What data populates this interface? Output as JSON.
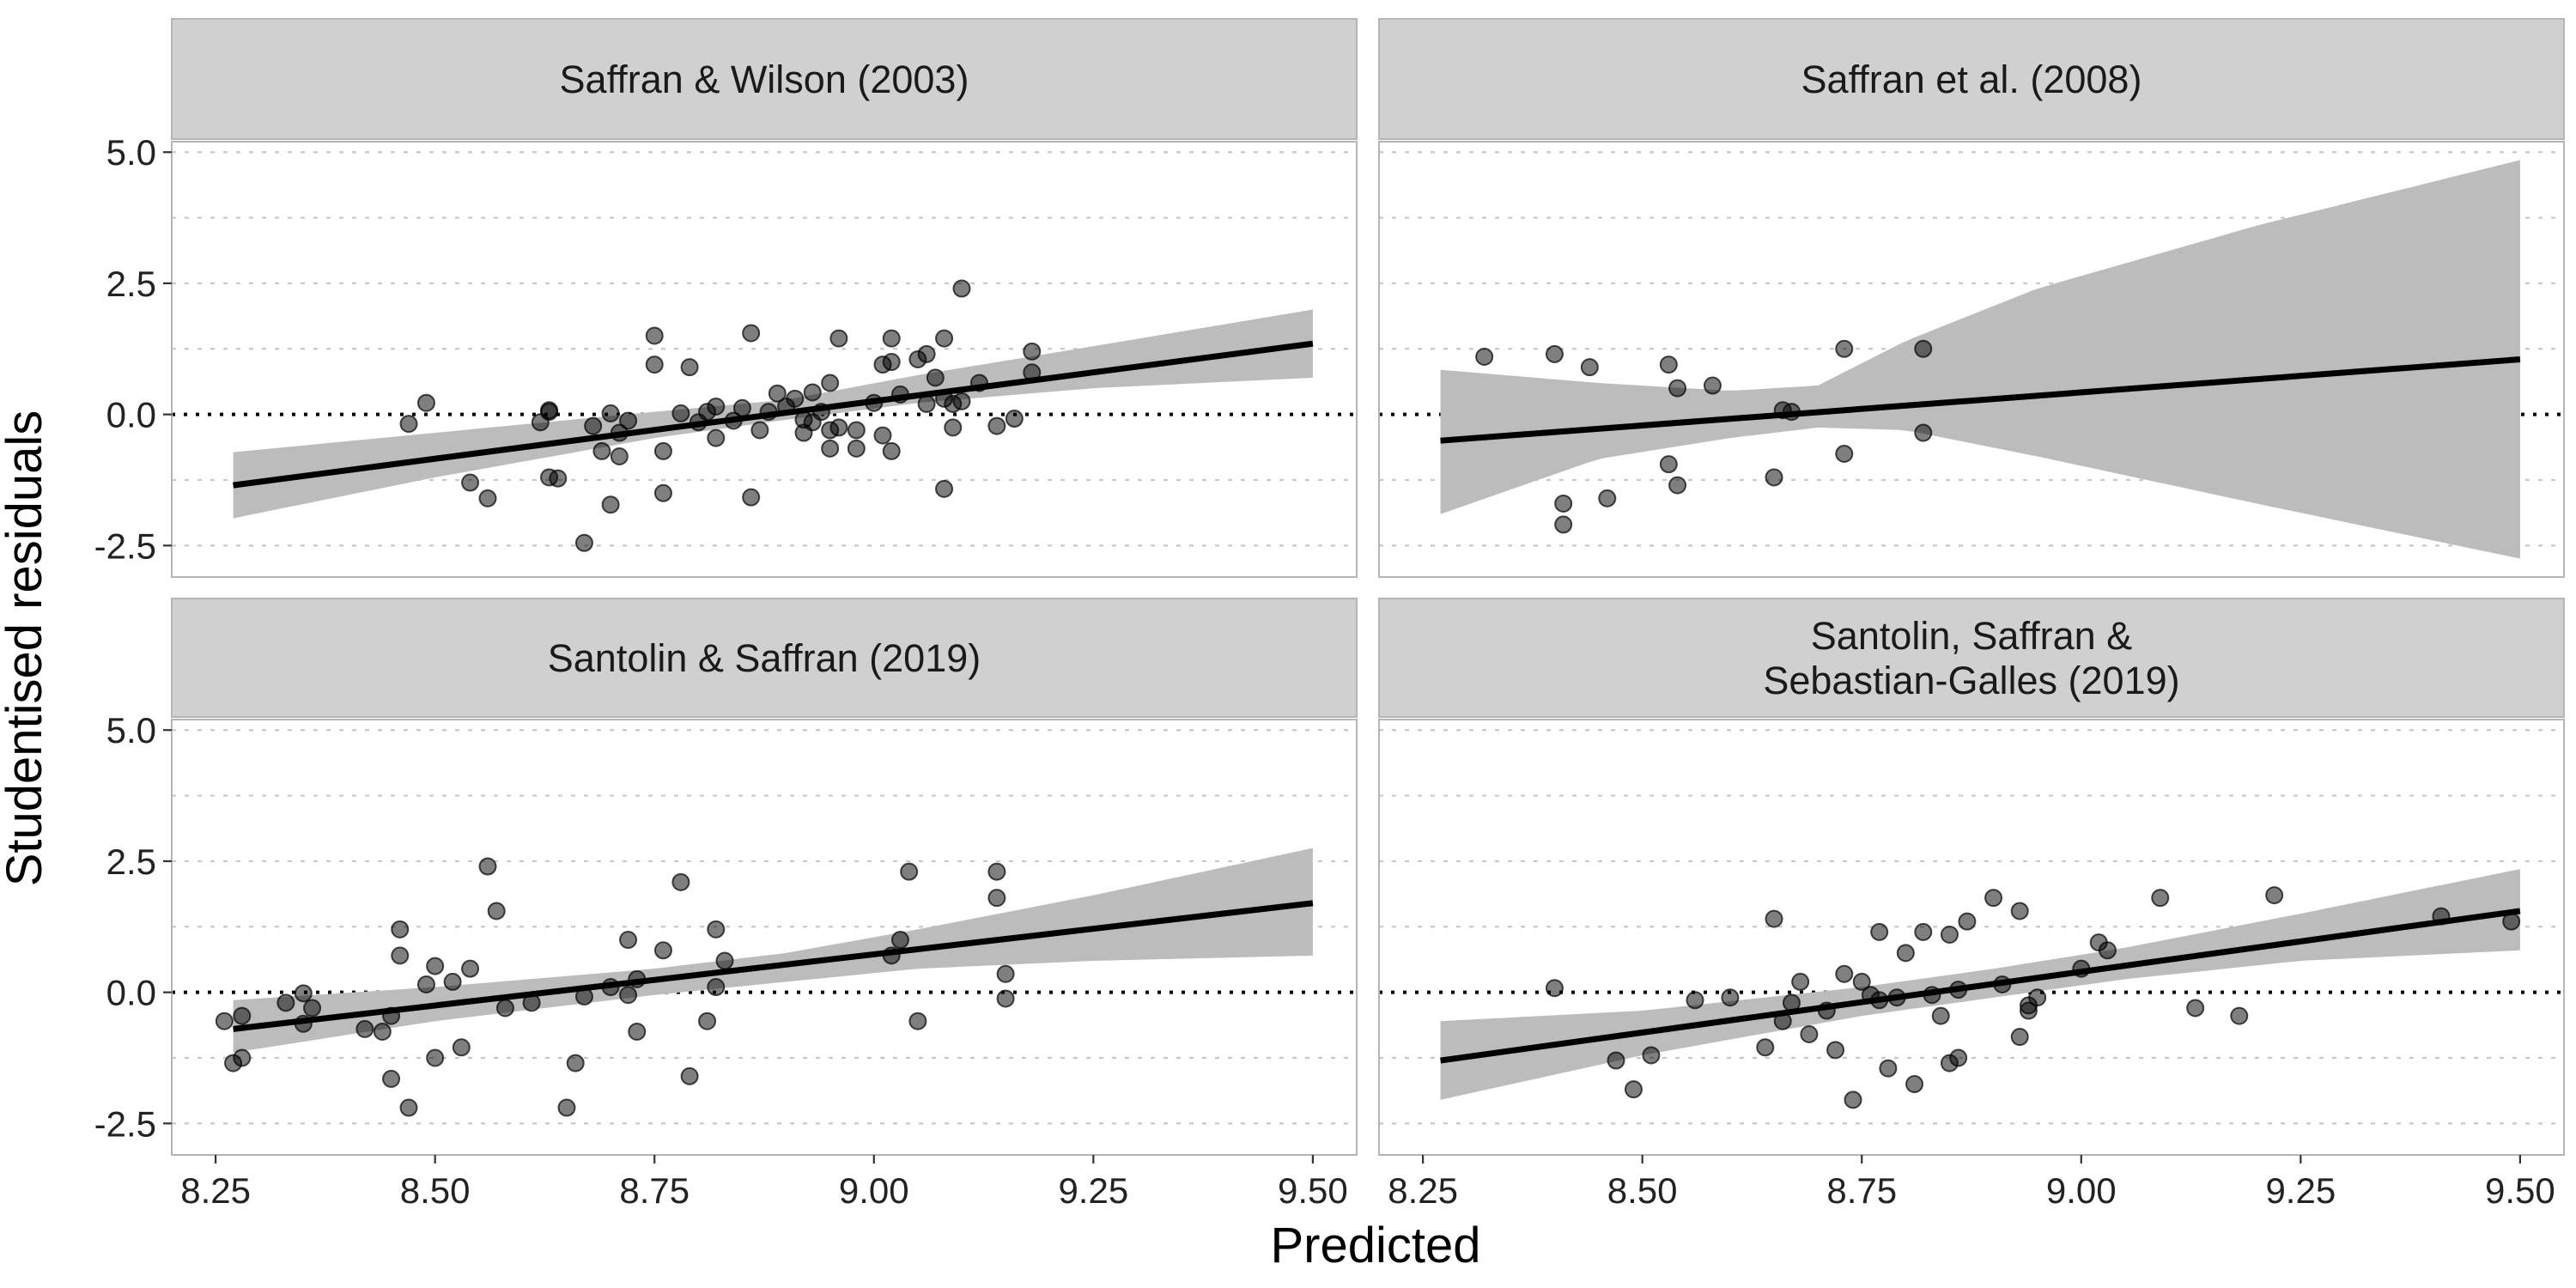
{
  "chart_data": {
    "type": "scatter",
    "xlabel": "Predicted",
    "ylabel": "Studentised residuals",
    "xlim": [
      8.2,
      9.55
    ],
    "ylim": [
      -3.1,
      5.2
    ],
    "x_ticks": [
      "8.25",
      "8.50",
      "8.75",
      "9.00",
      "9.25",
      "9.50"
    ],
    "y_ticks": [
      "-2.5",
      "0.0",
      "2.5",
      "5.0"
    ],
    "x_tick_values": [
      8.25,
      8.5,
      8.75,
      9.0,
      9.25,
      9.5
    ],
    "y_tick_values": [
      -2.5,
      0,
      2.5,
      5.0
    ],
    "y_minor_grid": [
      -1.25,
      1.25,
      3.75
    ],
    "reference_line_y": 0,
    "panels": [
      {
        "title_lines": [
          "Saffran & Wilson (2003)"
        ],
        "fit": {
          "x": [
            8.27,
            9.5
          ],
          "y": [
            -1.35,
            1.35
          ]
        },
        "band": {
          "x": [
            8.27,
            8.5,
            8.75,
            8.9,
            9.05,
            9.25,
            9.5
          ],
          "lower": [
            -1.98,
            -1.2,
            -0.45,
            -0.1,
            0.22,
            0.5,
            0.7
          ],
          "upper": [
            -0.72,
            -0.35,
            0.05,
            0.28,
            0.75,
            1.3,
            2.0
          ]
        },
        "points": [
          [
            8.47,
            -0.18
          ],
          [
            8.49,
            0.22
          ],
          [
            8.54,
            -1.3
          ],
          [
            8.56,
            -1.6
          ],
          [
            8.62,
            -0.15
          ],
          [
            8.63,
            0.05
          ],
          [
            8.63,
            -1.2
          ],
          [
            8.63,
            0.08
          ],
          [
            8.64,
            -1.22
          ],
          [
            8.67,
            -2.45
          ],
          [
            8.68,
            -0.22
          ],
          [
            8.69,
            -0.7
          ],
          [
            8.7,
            -1.72
          ],
          [
            8.7,
            0.02
          ],
          [
            8.71,
            -0.35
          ],
          [
            8.71,
            -0.8
          ],
          [
            8.72,
            -0.12
          ],
          [
            8.75,
            0.95
          ],
          [
            8.75,
            1.5
          ],
          [
            8.76,
            -1.5
          ],
          [
            8.76,
            -0.7
          ],
          [
            8.78,
            0.02
          ],
          [
            8.79,
            0.9
          ],
          [
            8.8,
            -0.15
          ],
          [
            8.81,
            0.05
          ],
          [
            8.82,
            0.15
          ],
          [
            8.82,
            -0.45
          ],
          [
            8.84,
            -0.12
          ],
          [
            8.85,
            0.12
          ],
          [
            8.86,
            -1.58
          ],
          [
            8.86,
            1.55
          ],
          [
            8.87,
            -0.3
          ],
          [
            8.88,
            0.05
          ],
          [
            8.89,
            0.4
          ],
          [
            8.9,
            0.15
          ],
          [
            8.91,
            0.3
          ],
          [
            8.92,
            -0.35
          ],
          [
            8.92,
            -0.1
          ],
          [
            8.93,
            0.42
          ],
          [
            8.93,
            -0.15
          ],
          [
            8.94,
            0.05
          ],
          [
            8.95,
            0.6
          ],
          [
            8.95,
            -0.65
          ],
          [
            8.95,
            -0.3
          ],
          [
            8.96,
            1.45
          ],
          [
            8.96,
            -0.25
          ],
          [
            8.98,
            -0.65
          ],
          [
            8.98,
            -0.3
          ],
          [
            9.0,
            0.22
          ],
          [
            9.01,
            -0.4
          ],
          [
            9.01,
            0.95
          ],
          [
            9.02,
            1.45
          ],
          [
            9.02,
            1.0
          ],
          [
            9.02,
            -0.7
          ],
          [
            9.03,
            0.38
          ],
          [
            9.05,
            1.05
          ],
          [
            9.06,
            0.2
          ],
          [
            9.06,
            1.15
          ],
          [
            9.07,
            0.7
          ],
          [
            9.08,
            0.3
          ],
          [
            9.08,
            1.45
          ],
          [
            9.08,
            -1.42
          ],
          [
            9.09,
            0.2
          ],
          [
            9.09,
            -0.25
          ],
          [
            9.1,
            2.4
          ],
          [
            9.1,
            0.25
          ],
          [
            9.12,
            0.6
          ],
          [
            9.14,
            -0.22
          ],
          [
            9.16,
            -0.08
          ],
          [
            9.18,
            1.2
          ],
          [
            9.18,
            0.8
          ]
        ]
      },
      {
        "title_lines": [
          "Saffran et al. (2008)"
        ],
        "fit": {
          "x": [
            8.27,
            9.5
          ],
          "y": [
            -0.5,
            1.05
          ]
        },
        "band": {
          "x": [
            8.27,
            8.45,
            8.6,
            8.7,
            8.8,
            8.95,
            9.2,
            9.5
          ],
          "lower": [
            -1.9,
            -0.85,
            -0.45,
            -0.25,
            -0.3,
            -0.8,
            -1.7,
            -2.75
          ],
          "upper": [
            0.85,
            0.6,
            0.45,
            0.55,
            1.4,
            2.4,
            3.6,
            4.85
          ]
        },
        "points": [
          [
            8.32,
            1.1
          ],
          [
            8.4,
            1.15
          ],
          [
            8.41,
            -1.7
          ],
          [
            8.41,
            -2.1
          ],
          [
            8.44,
            0.9
          ],
          [
            8.46,
            -1.6
          ],
          [
            8.53,
            0.95
          ],
          [
            8.53,
            -0.95
          ],
          [
            8.54,
            0.5
          ],
          [
            8.54,
            -1.35
          ],
          [
            8.58,
            0.55
          ],
          [
            8.65,
            -1.2
          ],
          [
            8.66,
            0.08
          ],
          [
            8.67,
            0.05
          ],
          [
            8.73,
            1.25
          ],
          [
            8.73,
            -0.75
          ],
          [
            8.82,
            1.25
          ],
          [
            8.82,
            -0.35
          ]
        ]
      },
      {
        "title_lines": [
          "Santolin & Saffran (2019)"
        ],
        "fit": {
          "x": [
            8.27,
            9.5
          ],
          "y": [
            -0.7,
            1.7
          ]
        },
        "band": {
          "x": [
            8.27,
            8.5,
            8.75,
            8.9,
            9.05,
            9.25,
            9.5
          ],
          "lower": [
            -1.15,
            -0.55,
            -0.05,
            0.2,
            0.45,
            0.6,
            0.7
          ],
          "upper": [
            -0.15,
            0.1,
            0.45,
            0.75,
            1.2,
            1.85,
            2.75
          ]
        },
        "points": [
          [
            8.26,
            -0.55
          ],
          [
            8.27,
            -1.35
          ],
          [
            8.28,
            -0.45
          ],
          [
            8.28,
            -1.25
          ],
          [
            8.33,
            -0.2
          ],
          [
            8.35,
            -0.02
          ],
          [
            8.35,
            -0.6
          ],
          [
            8.36,
            -0.3
          ],
          [
            8.42,
            -0.7
          ],
          [
            8.44,
            -0.75
          ],
          [
            8.45,
            -1.65
          ],
          [
            8.45,
            -0.45
          ],
          [
            8.46,
            1.2
          ],
          [
            8.46,
            0.7
          ],
          [
            8.47,
            -2.2
          ],
          [
            8.49,
            0.15
          ],
          [
            8.5,
            0.5
          ],
          [
            8.5,
            -1.25
          ],
          [
            8.52,
            0.2
          ],
          [
            8.53,
            -1.05
          ],
          [
            8.54,
            0.45
          ],
          [
            8.56,
            2.4
          ],
          [
            8.57,
            1.55
          ],
          [
            8.58,
            -0.3
          ],
          [
            8.61,
            -0.2
          ],
          [
            8.65,
            -2.2
          ],
          [
            8.66,
            -1.35
          ],
          [
            8.67,
            -0.08
          ],
          [
            8.7,
            0.1
          ],
          [
            8.72,
            -0.05
          ],
          [
            8.72,
            1.0
          ],
          [
            8.73,
            0.25
          ],
          [
            8.73,
            -0.75
          ],
          [
            8.76,
            0.8
          ],
          [
            8.78,
            2.1
          ],
          [
            8.79,
            -1.6
          ],
          [
            8.81,
            -0.55
          ],
          [
            8.82,
            1.2
          ],
          [
            8.82,
            0.1
          ],
          [
            8.83,
            0.6
          ],
          [
            9.02,
            0.7
          ],
          [
            9.03,
            1.0
          ],
          [
            9.04,
            2.3
          ],
          [
            9.05,
            -0.55
          ],
          [
            9.14,
            2.3
          ],
          [
            9.14,
            1.8
          ],
          [
            9.15,
            0.35
          ],
          [
            9.15,
            -0.12
          ]
        ]
      },
      {
        "title_lines": [
          "Santolin, Saffran &",
          "Sebastian-Galles (2019)"
        ],
        "fit": {
          "x": [
            8.27,
            9.5
          ],
          "y": [
            -1.3,
            1.55
          ]
        },
        "band": {
          "x": [
            8.27,
            8.5,
            8.75,
            8.9,
            9.05,
            9.25,
            9.5
          ],
          "lower": [
            -2.05,
            -1.2,
            -0.45,
            -0.1,
            0.25,
            0.6,
            0.8
          ],
          "upper": [
            -0.55,
            -0.35,
            0.1,
            0.45,
            0.85,
            1.5,
            2.35
          ]
        },
        "points": [
          [
            8.4,
            0.08
          ],
          [
            8.47,
            -1.3
          ],
          [
            8.49,
            -1.85
          ],
          [
            8.51,
            -1.2
          ],
          [
            8.56,
            -0.15
          ],
          [
            8.6,
            -0.1
          ],
          [
            8.64,
            -1.05
          ],
          [
            8.65,
            1.4
          ],
          [
            8.66,
            -0.55
          ],
          [
            8.67,
            -0.2
          ],
          [
            8.68,
            0.2
          ],
          [
            8.69,
            -0.8
          ],
          [
            8.71,
            -0.35
          ],
          [
            8.72,
            -1.1
          ],
          [
            8.73,
            0.35
          ],
          [
            8.74,
            -2.05
          ],
          [
            8.75,
            0.2
          ],
          [
            8.76,
            -0.05
          ],
          [
            8.77,
            1.15
          ],
          [
            8.77,
            -0.15
          ],
          [
            8.78,
            -1.45
          ],
          [
            8.79,
            -0.1
          ],
          [
            8.8,
            0.75
          ],
          [
            8.81,
            -1.75
          ],
          [
            8.82,
            1.15
          ],
          [
            8.83,
            -0.05
          ],
          [
            8.84,
            -0.45
          ],
          [
            8.85,
            1.1
          ],
          [
            8.85,
            -1.35
          ],
          [
            8.86,
            0.05
          ],
          [
            8.86,
            -1.25
          ],
          [
            8.87,
            1.35
          ],
          [
            8.9,
            1.8
          ],
          [
            8.91,
            0.15
          ],
          [
            8.93,
            1.55
          ],
          [
            8.93,
            -0.85
          ],
          [
            8.94,
            -0.25
          ],
          [
            8.94,
            -0.35
          ],
          [
            8.95,
            -0.1
          ],
          [
            9.0,
            0.45
          ],
          [
            9.02,
            0.95
          ],
          [
            9.03,
            0.8
          ],
          [
            9.09,
            1.8
          ],
          [
            9.13,
            -0.3
          ],
          [
            9.18,
            -0.45
          ],
          [
            9.22,
            1.85
          ],
          [
            9.41,
            1.45
          ],
          [
            9.49,
            1.35
          ]
        ]
      }
    ]
  }
}
